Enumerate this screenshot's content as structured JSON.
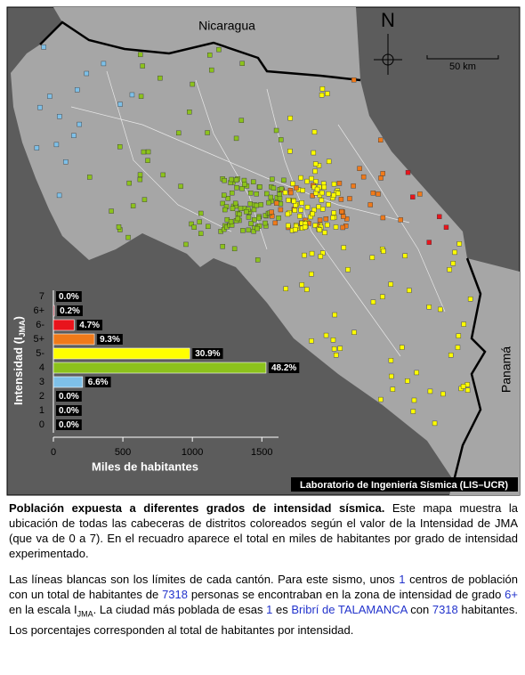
{
  "map": {
    "labels": {
      "nicaragua": "Nicaragua",
      "panama": "Panamá",
      "north": "N",
      "scale": "50 km",
      "credit": "Laboratorio de Ingeniería Sísmica (LIS–UCR)"
    }
  },
  "chart_data": {
    "type": "bar",
    "orientation": "horizontal",
    "categories": [
      "7",
      "6+",
      "6-",
      "5+",
      "5-",
      "4",
      "3",
      "2",
      "1",
      "0"
    ],
    "values": [
      0,
      7.318,
      149,
      295,
      981,
      1530,
      210,
      0,
      0,
      0
    ],
    "percent_labels": [
      "0.0%",
      "0.2%",
      "4.7%",
      "9.3%",
      "30.9%",
      "48.2%",
      "6.6%",
      "0.0%",
      "0.0%",
      "0.0%"
    ],
    "colors": [
      "#7a0a20",
      "#c0102a",
      "#e8141c",
      "#f07a1a",
      "#ffff00",
      "#8cc21c",
      "#7ec0e8",
      "#7ec0e8",
      "#7ec0e8",
      "#7ec0e8"
    ],
    "xlim": [
      0,
      1620
    ],
    "xticks": [
      0,
      500,
      1000,
      1500
    ],
    "xlabel": "Miles de habitantes",
    "ylabel": {
      "main": "Intensidad (I",
      "sub": "JMA",
      "end": ")"
    }
  },
  "caption": {
    "p1": [
      "Población expuesta a diferentes grados de intensidad sísmica.",
      "  Este mapa muestra la ubicación de todas las cabeceras de distritos coloreados según el valor de la Intensidad de JMA (que va de 0 a 7).  En el recuadro aparece el total en miles de habitantes por grado de intensidad experimentado."
    ],
    "p2": [
      "Las líneas blancas son los límites de cada cantón.  Para este sismo, unos ",
      1,
      " centros de población con un total de habitantes de ",
      7318,
      " personas se encontraban en la zona de intensidad de grado ",
      "6+",
      " en la escala I",
      "JMA",
      ".  La ciudad más poblada de esas ",
      1,
      " es ",
      "Bribrí de TALAMANCA",
      " con ",
      7318,
      " habitantes.  Los porcentajes corresponden al total de habitantes por intensidad."
    ]
  }
}
